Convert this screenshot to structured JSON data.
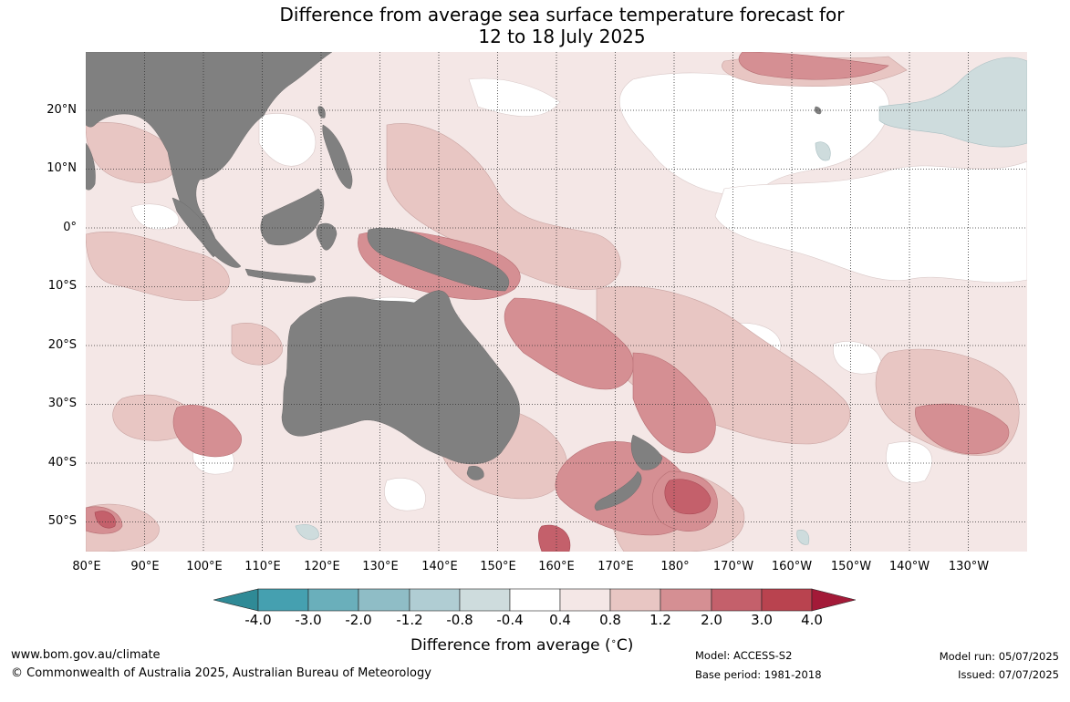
{
  "title_line1": "Difference from average sea surface temperature forecast for",
  "title_line2": "12 to 18 July 2025",
  "lat_labels": [
    "20°N",
    "10°N",
    "0°",
    "10°S",
    "20°S",
    "30°S",
    "40°S",
    "50°S"
  ],
  "lon_labels": [
    "80°E",
    "90°E",
    "100°E",
    "110°E",
    "120°E",
    "130°E",
    "140°E",
    "150°E",
    "160°E",
    "170°E",
    "180°",
    "170°W",
    "160°W",
    "150°W",
    "140°W",
    "130°W"
  ],
  "colorbar": {
    "ticks": [
      "-4.0",
      "-3.0",
      "-2.0",
      "-1.2",
      "-0.8",
      "-0.4",
      "0.4",
      "0.8",
      "1.2",
      "2.0",
      "3.0",
      "4.0"
    ],
    "colors": [
      "#2f8a96",
      "#45a0b0",
      "#6aafbb",
      "#8fbdc6",
      "#b0cdd3",
      "#cedcdd",
      "#ffffff",
      "#f4e7e6",
      "#e8c6c3",
      "#d58f93",
      "#c4606b",
      "#b9434f",
      "#a31a38"
    ],
    "label": "Difference from average (°C)",
    "label_text": "Difference from average (",
    "label_unit": "C)"
  },
  "footer": {
    "url": "www.bom.gov.au/climate",
    "copyright": "© Commonwealth of Australia 2025, Australian Bureau of Meteorology",
    "model": "Model: ACCESS-S2",
    "base_period": "Base period: 1981-2018",
    "model_run": "Model run: 05/07/2025",
    "issued": "Issued: 07/07/2025"
  },
  "map": {
    "land_color": "#808080",
    "ocean_base_color": "#f4e7e6",
    "grid": true
  }
}
